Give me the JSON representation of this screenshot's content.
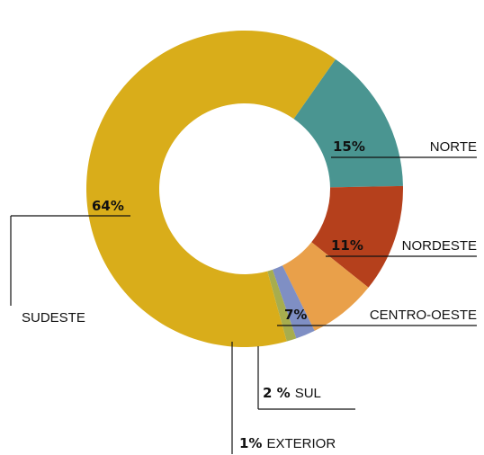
{
  "chart_data": {
    "type": "pie",
    "donut": true,
    "categories": [
      "NORTE",
      "NORDESTE",
      "CENTRO-OESTE",
      "SUL",
      "EXTERIOR",
      "SUDESTE"
    ],
    "values": [
      15,
      11,
      7,
      2,
      1,
      64
    ],
    "value_labels": [
      "15%",
      "11%",
      "7%",
      "2 %",
      "1%",
      "64%"
    ],
    "colors": [
      "#4a9591",
      "#b5401c",
      "#e9a04a",
      "#7f8fc4",
      "#a7ad4e",
      "#d9ad1a"
    ]
  }
}
